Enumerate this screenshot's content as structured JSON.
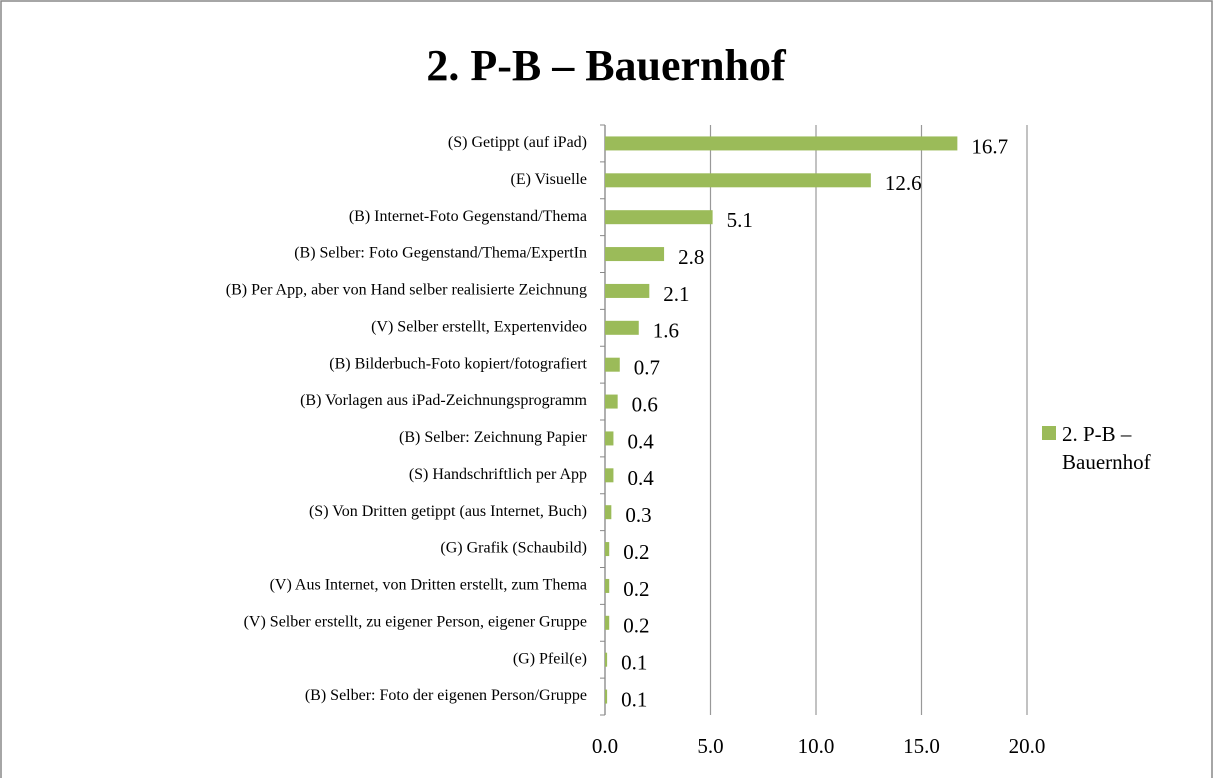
{
  "chart_data": {
    "type": "bar",
    "orientation": "horizontal",
    "title": "2. P-B – Bauernhof",
    "categories": [
      "(S) Getippt (auf iPad)",
      "(E) Visuelle",
      "(B) Internet-Foto Gegenstand/Thema",
      "(B) Selber: Foto Gegenstand/Thema/ExpertIn",
      "(B) Per App, aber von Hand selber realisierte Zeichnung",
      "(V) Selber erstellt, Expertenvideo",
      "(B) Bilderbuch-Foto kopiert/fotografiert",
      "(B) Vorlagen aus iPad-Zeichnungsprogramm",
      "(B) Selber: Zeichnung Papier",
      "(S) Handschriftlich per App",
      "(S) Von Dritten getippt (aus Internet, Buch)",
      "(G) Grafik (Schaubild)",
      "(V) Aus Internet, von Dritten erstellt, zum Thema",
      "(V) Selber erstellt, zu eigener Person, eigener Gruppe",
      "(G) Pfeil(e)",
      "(B) Selber: Foto der eigenen Person/Gruppe"
    ],
    "series": [
      {
        "name": "2. P-B – Bauernhof",
        "color": "#9bbb59",
        "values": [
          16.7,
          12.6,
          5.1,
          2.8,
          2.1,
          1.6,
          0.7,
          0.6,
          0.4,
          0.4,
          0.3,
          0.2,
          0.2,
          0.2,
          0.1,
          0.1
        ]
      }
    ],
    "xlim": [
      0,
      20
    ],
    "xticks": [
      {
        "value": 0,
        "label": "0.0"
      },
      {
        "value": 5,
        "label": "5.0"
      },
      {
        "value": 10,
        "label": "10.0"
      },
      {
        "value": 15,
        "label": "15.0"
      },
      {
        "value": 20,
        "label": "20.0"
      }
    ],
    "grid": true,
    "legend": "right"
  }
}
